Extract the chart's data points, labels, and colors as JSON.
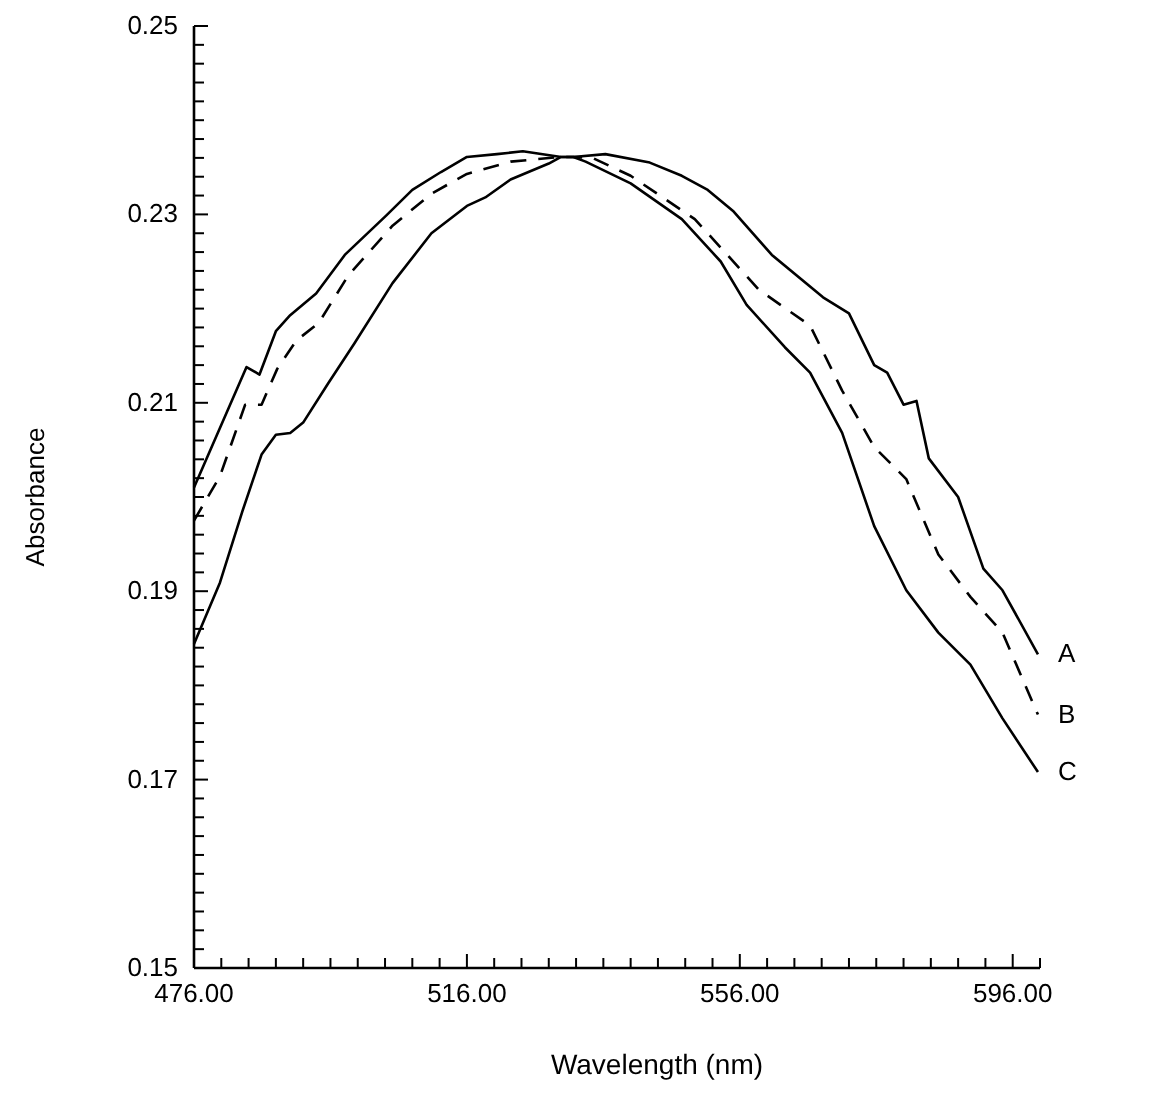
{
  "chart_data": {
    "type": "line",
    "xlabel": "Wavelength (nm)",
    "ylabel": "Absorbance",
    "xlim": [
      476,
      600
    ],
    "ylim": [
      0.15,
      0.25
    ],
    "xticks": [
      {
        "value": 476,
        "label": "476.00"
      },
      {
        "value": 480,
        "label": null
      },
      {
        "value": 484,
        "label": null
      },
      {
        "value": 488,
        "label": null
      },
      {
        "value": 492,
        "label": null
      },
      {
        "value": 496,
        "label": null
      },
      {
        "value": 500,
        "label": null
      },
      {
        "value": 504,
        "label": null
      },
      {
        "value": 508,
        "label": null
      },
      {
        "value": 512,
        "label": null
      },
      {
        "value": 516,
        "label": "516.00"
      },
      {
        "value": 520,
        "label": null
      },
      {
        "value": 524,
        "label": null
      },
      {
        "value": 528,
        "label": null
      },
      {
        "value": 532,
        "label": null
      },
      {
        "value": 536,
        "label": null
      },
      {
        "value": 540,
        "label": null
      },
      {
        "value": 544,
        "label": null
      },
      {
        "value": 548,
        "label": null
      },
      {
        "value": 552,
        "label": null
      },
      {
        "value": 556,
        "label": "556.00"
      },
      {
        "value": 560,
        "label": null
      },
      {
        "value": 564,
        "label": null
      },
      {
        "value": 568,
        "label": null
      },
      {
        "value": 572,
        "label": null
      },
      {
        "value": 576,
        "label": null
      },
      {
        "value": 580,
        "label": null
      },
      {
        "value": 584,
        "label": null
      },
      {
        "value": 588,
        "label": null
      },
      {
        "value": 592,
        "label": null
      },
      {
        "value": 596,
        "label": "596.00"
      },
      {
        "value": 600,
        "label": null
      }
    ],
    "yticks": [
      {
        "value": 0.15,
        "label": "0.15"
      },
      {
        "value": 0.152,
        "label": null
      },
      {
        "value": 0.154,
        "label": null
      },
      {
        "value": 0.156,
        "label": null
      },
      {
        "value": 0.158,
        "label": null
      },
      {
        "value": 0.16,
        "label": null
      },
      {
        "value": 0.162,
        "label": null
      },
      {
        "value": 0.164,
        "label": null
      },
      {
        "value": 0.166,
        "label": null
      },
      {
        "value": 0.168,
        "label": null
      },
      {
        "value": 0.17,
        "label": "0.17"
      },
      {
        "value": 0.172,
        "label": null
      },
      {
        "value": 0.174,
        "label": null
      },
      {
        "value": 0.176,
        "label": null
      },
      {
        "value": 0.178,
        "label": null
      },
      {
        "value": 0.18,
        "label": null
      },
      {
        "value": 0.182,
        "label": null
      },
      {
        "value": 0.184,
        "label": null
      },
      {
        "value": 0.186,
        "label": null
      },
      {
        "value": 0.188,
        "label": null
      },
      {
        "value": 0.19,
        "label": "0.19"
      },
      {
        "value": 0.192,
        "label": null
      },
      {
        "value": 0.194,
        "label": null
      },
      {
        "value": 0.196,
        "label": null
      },
      {
        "value": 0.198,
        "label": null
      },
      {
        "value": 0.2,
        "label": null
      },
      {
        "value": 0.202,
        "label": null
      },
      {
        "value": 0.204,
        "label": null
      },
      {
        "value": 0.206,
        "label": null
      },
      {
        "value": 0.208,
        "label": null
      },
      {
        "value": 0.21,
        "label": "0.21"
      },
      {
        "value": 0.212,
        "label": null
      },
      {
        "value": 0.214,
        "label": null
      },
      {
        "value": 0.216,
        "label": null
      },
      {
        "value": 0.218,
        "label": null
      },
      {
        "value": 0.22,
        "label": null
      },
      {
        "value": 0.222,
        "label": null
      },
      {
        "value": 0.224,
        "label": null
      },
      {
        "value": 0.226,
        "label": null
      },
      {
        "value": 0.228,
        "label": null
      },
      {
        "value": 0.23,
        "label": "0.23"
      },
      {
        "value": 0.232,
        "label": null
      },
      {
        "value": 0.234,
        "label": null
      },
      {
        "value": 0.236,
        "label": null
      },
      {
        "value": 0.238,
        "label": null
      },
      {
        "value": 0.24,
        "label": null
      },
      {
        "value": 0.242,
        "label": null
      },
      {
        "value": 0.244,
        "label": null
      },
      {
        "value": 0.246,
        "label": null
      },
      {
        "value": 0.248,
        "label": null
      },
      {
        "value": 0.25,
        "label": "0.25"
      }
    ],
    "series": [
      {
        "name": "A",
        "color": "#000000",
        "line_style": "solid",
        "x": [
          476,
          483.7,
          485.6,
          488,
          490.1,
          493.9,
          498.1,
          504.2,
          508,
          512.2,
          516,
          520.4,
          524.2,
          529.8,
          531.6,
          536.3,
          542.8,
          547.5,
          551.3,
          555.1,
          560.7,
          568.2,
          572,
          575.7,
          577.6,
          580,
          581.9,
          583.7,
          588,
          591.7,
          594.5,
          599.7
        ],
        "values": [
          0.201,
          0.2138,
          0.213,
          0.2176,
          0.2193,
          0.2216,
          0.2257,
          0.2299,
          0.2326,
          0.2345,
          0.2361,
          0.2364,
          0.2367,
          0.2361,
          0.2361,
          0.2364,
          0.2355,
          0.2341,
          0.2326,
          0.2303,
          0.2257,
          0.2212,
          0.2195,
          0.214,
          0.2132,
          0.2098,
          0.2102,
          0.2041,
          0.2,
          0.1924,
          0.1901,
          0.1833
        ]
      },
      {
        "name": "B",
        "color": "#000000",
        "line_style": "dashed",
        "x": [
          476,
          479.8,
          483.5,
          485.9,
          488.2,
          491,
          494.3,
          498.6,
          505.1,
          510.8,
          516,
          522.4,
          529.8,
          531.6,
          534.4,
          540,
          549.4,
          558.8,
          566.3,
          571,
          575.7,
          580.4,
          585.1,
          589.8,
          594.5,
          599.7
        ],
        "values": [
          0.1975,
          0.2022,
          0.2098,
          0.2098,
          0.2136,
          0.2166,
          0.2185,
          0.2235,
          0.2288,
          0.2322,
          0.2343,
          0.2356,
          0.2361,
          0.2361,
          0.236,
          0.2341,
          0.2295,
          0.222,
          0.2182,
          0.2113,
          0.2053,
          0.2019,
          0.1939,
          0.1894,
          0.1856,
          0.1769
        ]
      },
      {
        "name": "C",
        "color": "#000000",
        "line_style": "solid",
        "x": [
          476,
          479.8,
          483.1,
          485.9,
          488,
          490.1,
          492,
          495.7,
          499.5,
          505.1,
          510.8,
          516,
          518.7,
          522.4,
          528,
          529.8,
          531.6,
          533.4,
          540,
          547.5,
          553.2,
          557,
          562.6,
          566.3,
          571,
          575.7,
          580.4,
          585.1,
          589.8,
          594.5,
          599.7
        ],
        "values": [
          0.1844,
          0.1909,
          0.1985,
          0.2045,
          0.2066,
          0.2068,
          0.2079,
          0.2121,
          0.2163,
          0.2227,
          0.228,
          0.2309,
          0.2318,
          0.2337,
          0.2354,
          0.2361,
          0.2361,
          0.2356,
          0.2333,
          0.2295,
          0.225,
          0.2204,
          0.2159,
          0.2132,
          0.2068,
          0.1969,
          0.1901,
          0.1856,
          0.1822,
          0.1765,
          0.1708
        ]
      }
    ]
  }
}
